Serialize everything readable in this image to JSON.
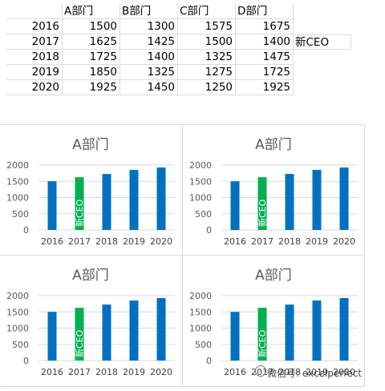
{
  "sheet": {
    "headers": [
      "",
      "A部门",
      "B部门",
      "C部门",
      "D部门"
    ],
    "rows": [
      {
        "year": "2016",
        "values": [
          "1500",
          "1300",
          "1575",
          "1675"
        ],
        "note": ""
      },
      {
        "year": "2017",
        "values": [
          "1625",
          "1425",
          "1500",
          "1400"
        ],
        "note": "新CEO"
      },
      {
        "year": "2018",
        "values": [
          "1725",
          "1400",
          "1325",
          "1475"
        ],
        "note": ""
      },
      {
        "year": "2019",
        "values": [
          "1850",
          "1325",
          "1275",
          "1725"
        ],
        "note": ""
      },
      {
        "year": "2020",
        "values": [
          "1925",
          "1450",
          "1250",
          "1925"
        ],
        "note": ""
      }
    ]
  },
  "chart_data": [
    {
      "type": "bar",
      "title": "A部门",
      "categories": [
        "2016",
        "2017",
        "2018",
        "2019",
        "2020"
      ],
      "values": [
        1500,
        1625,
        1725,
        1850,
        1925
      ],
      "ylim": [
        0,
        2000
      ],
      "yticks": [
        0,
        500,
        1000,
        1500,
        2000
      ],
      "highlight_index": 1,
      "highlight_label": "新CEO",
      "bar_color": "#0070C0",
      "highlight_color": "#00B050",
      "grid": true
    },
    {
      "type": "bar",
      "title": "A部门",
      "categories": [
        "2016",
        "2017",
        "2018",
        "2019",
        "2020"
      ],
      "values": [
        1500,
        1625,
        1725,
        1850,
        1925
      ],
      "ylim": [
        0,
        2000
      ],
      "yticks": [
        0,
        500,
        1000,
        1500,
        2000
      ],
      "highlight_index": 1,
      "highlight_label": "新CEO",
      "bar_color": "#0070C0",
      "highlight_color": "#00B050",
      "grid": true
    },
    {
      "type": "bar",
      "title": "A部门",
      "categories": [
        "2016",
        "2017",
        "2018",
        "2019",
        "2020"
      ],
      "values": [
        1500,
        1625,
        1725,
        1850,
        1925
      ],
      "ylim": [
        0,
        2000
      ],
      "yticks": [
        0,
        500,
        1000,
        1500,
        2000
      ],
      "highlight_index": 1,
      "highlight_label": "新CEO",
      "bar_color": "#0070C0",
      "highlight_color": "#00B050",
      "grid": true
    },
    {
      "type": "bar",
      "title": "A部门",
      "categories": [
        "2016",
        "2017",
        "2018",
        "2019",
        "2020"
      ],
      "values": [
        1500,
        1625,
        1725,
        1850,
        1925
      ],
      "ylim": [
        0,
        2000
      ],
      "yticks": [
        0,
        500,
        1000,
        1500,
        2000
      ],
      "highlight_index": 1,
      "highlight_label": "新CEO",
      "bar_color": "#0070C0",
      "highlight_color": "#00B050",
      "grid": true
    }
  ],
  "watermark": "微信号: excelperfect"
}
